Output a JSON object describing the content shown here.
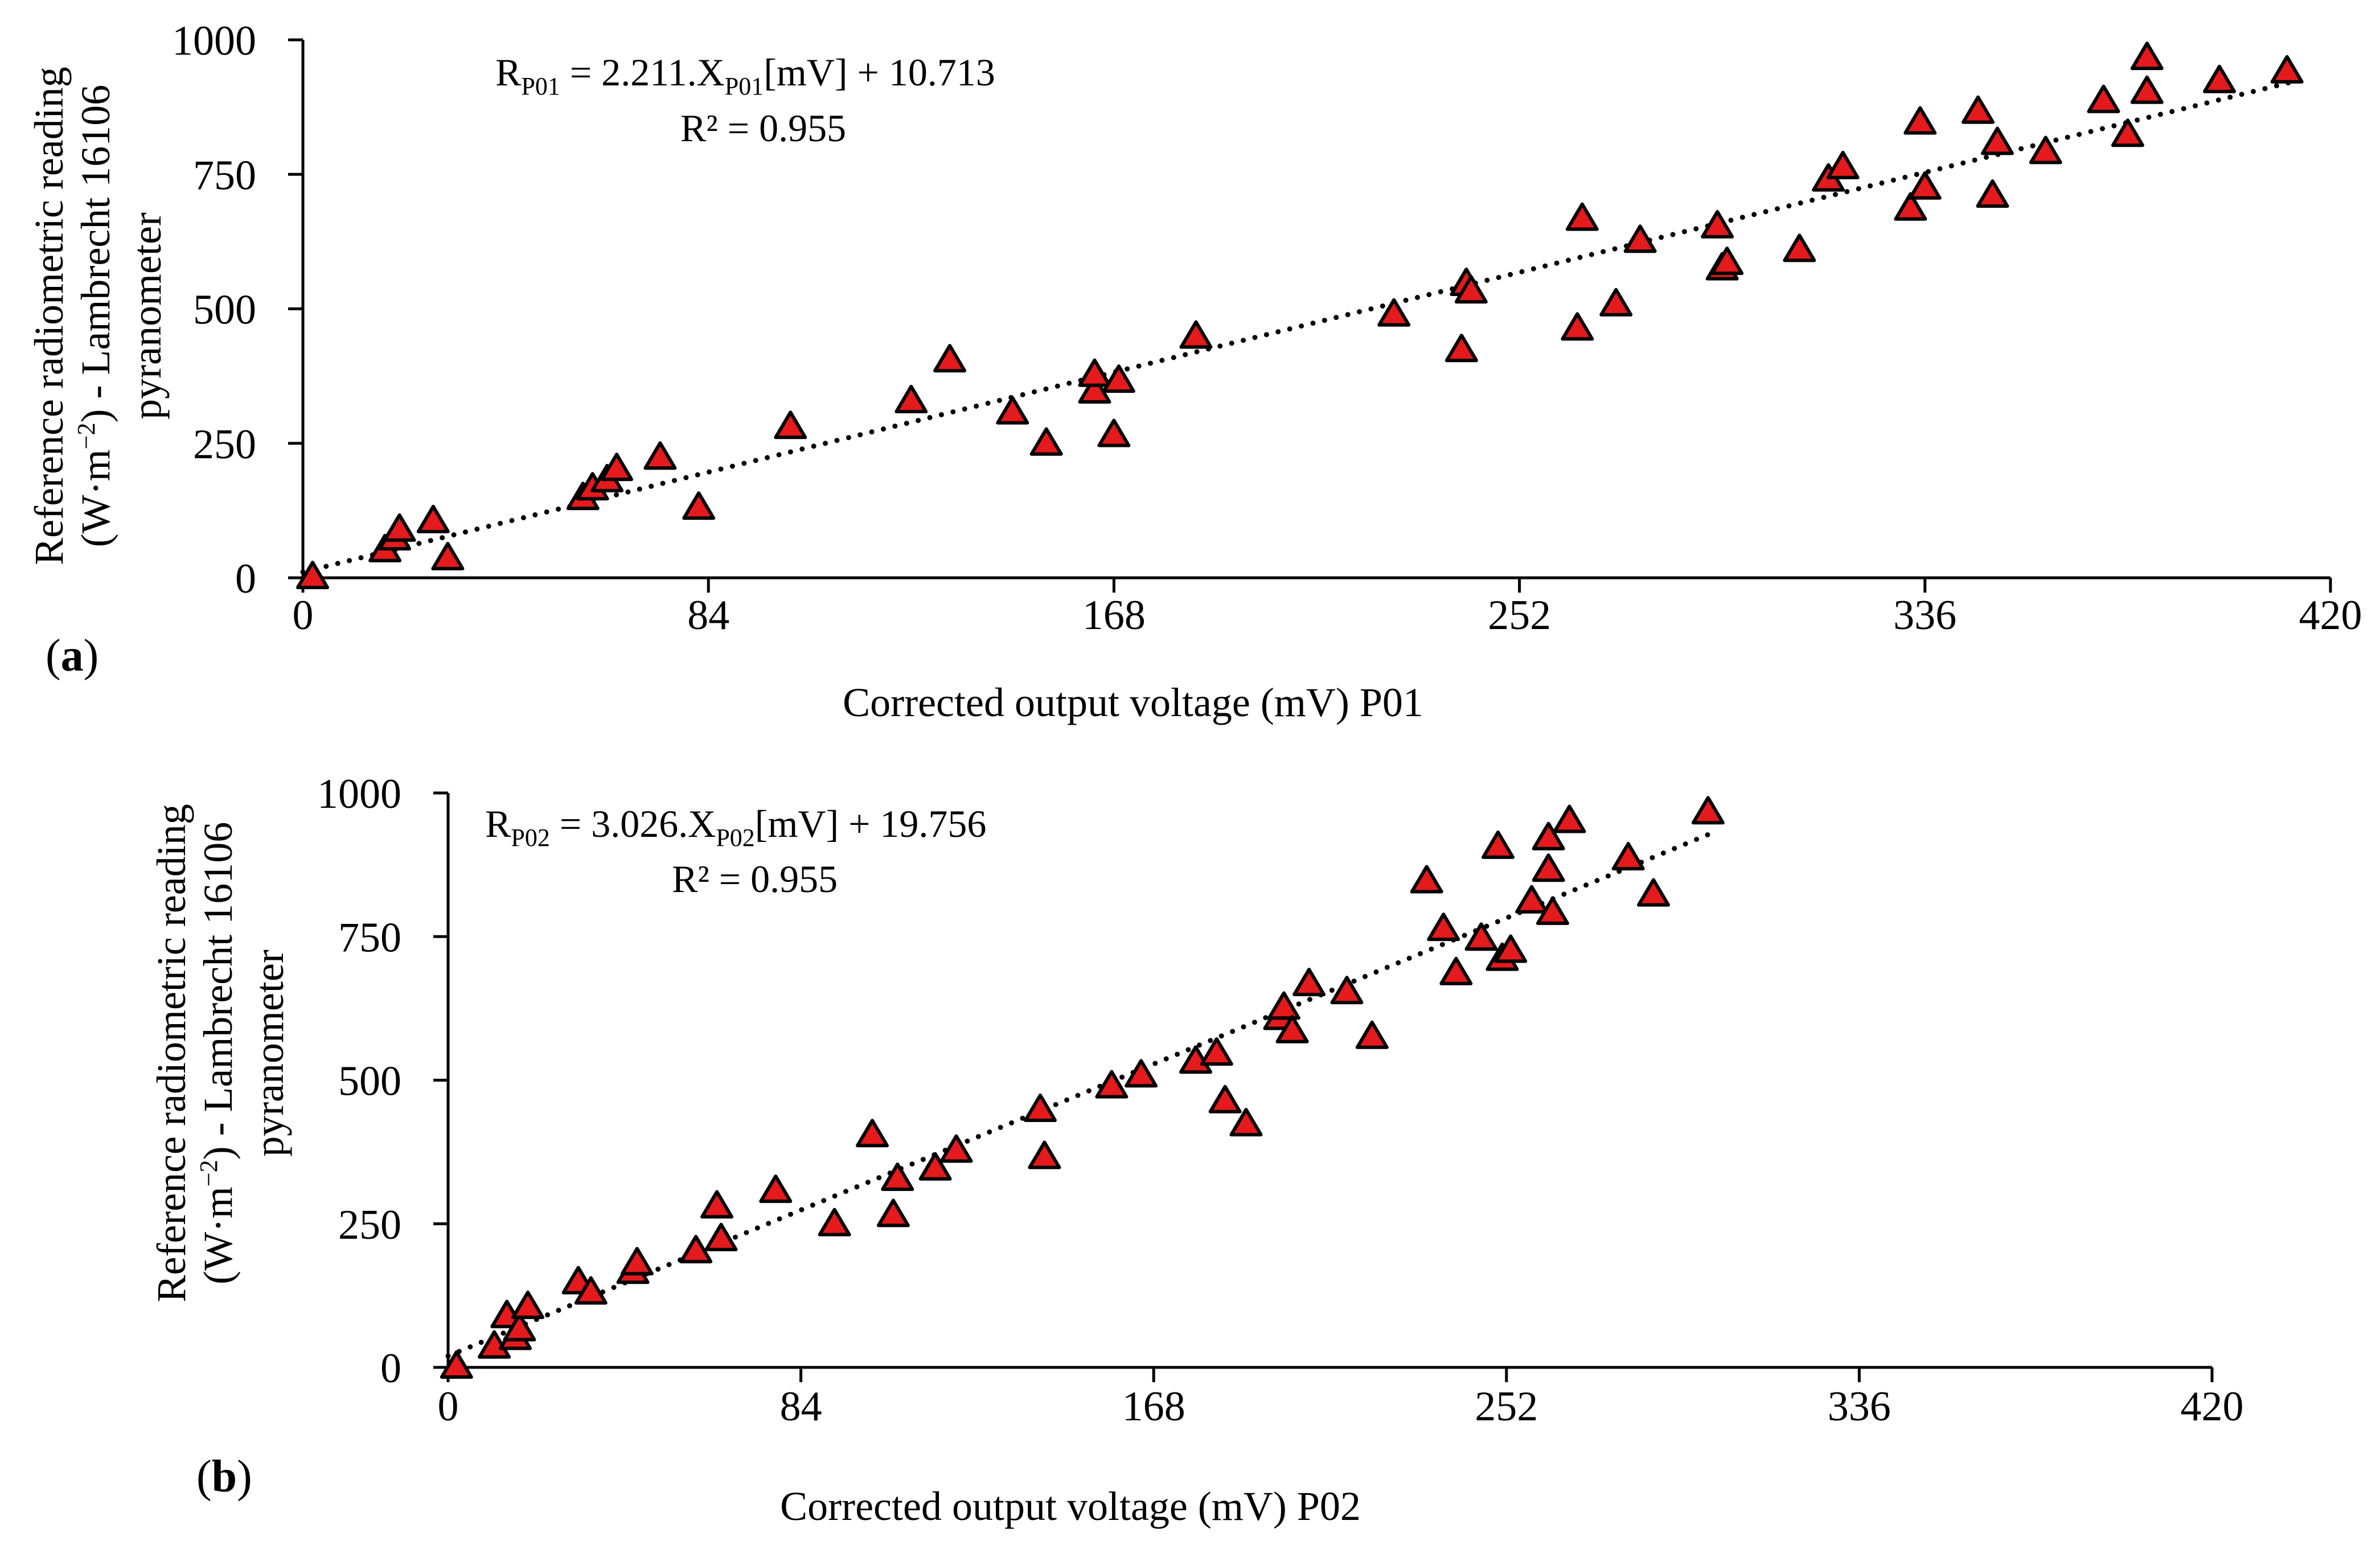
{
  "colors": {
    "marker_fill": "#e41a1c",
    "marker_stroke": "#000000",
    "trendline": "#000000",
    "axis": "#000000"
  },
  "chart_data": [
    {
      "type": "scatter",
      "panel_label": "a",
      "xlabel": "Corrected output voltage (mV) P01",
      "ylabel_line1": "Reference radiometric reading",
      "ylabel_line2_pre": "(W·m",
      "ylabel_line2_sup": "−2",
      "ylabel_line2_post": ") - Lambrecht 16106",
      "ylabel_line3": "pyranometer",
      "xlim": [
        0,
        420
      ],
      "ylim": [
        0,
        1000
      ],
      "xticks": [
        0,
        84,
        168,
        252,
        336,
        420
      ],
      "yticks": [
        0,
        250,
        500,
        750,
        1000
      ],
      "equation": {
        "R": "R",
        "sub1": "P01",
        "mid": " = 2.211.X",
        "sub2": "P01",
        "tail": "[mV] + 10.713",
        "r2": "R² = 0.955"
      },
      "trendline": {
        "slope": 2.211,
        "intercept": 10.713,
        "x_range": [
          0,
          412
        ]
      },
      "series": [
        {
          "name": "P01",
          "x": [
            2,
            17,
            19,
            20,
            27,
            30,
            58,
            60,
            63,
            65,
            74,
            82,
            101,
            126,
            134,
            147,
            154,
            164,
            164,
            168,
            169,
            185,
            226,
            240,
            241,
            242,
            264,
            265,
            272,
            277,
            293,
            294,
            295,
            310,
            316,
            319,
            333,
            335,
            336,
            347,
            350,
            351,
            361,
            373,
            378,
            382,
            382,
            397,
            411
          ],
          "y": [
            0,
            50,
            72,
            88,
            104,
            35,
            147,
            165,
            180,
            201,
            222,
            129,
            279,
            327,
            403,
            306,
            248,
            345,
            376,
            264,
            365,
            447,
            488,
            422,
            545,
            531,
            462,
            666,
            507,
            625,
            652,
            574,
            584,
            608,
            739,
            762,
            685,
            845,
            724,
            865,
            709,
            807,
            790,
            885,
            822,
            965,
            902,
            922,
            940
          ]
        }
      ]
    },
    {
      "type": "scatter",
      "panel_label": "b",
      "xlabel": "Corrected output voltage (mV) P02",
      "ylabel_line1": "Reference radiometric reading",
      "ylabel_line2_pre": "(W·m",
      "ylabel_line2_sup": "−2",
      "ylabel_line2_post": ") - Lambrecht 16106",
      "ylabel_line3": "pyranometer",
      "xlim": [
        0,
        420
      ],
      "ylim": [
        0,
        1000
      ],
      "xticks": [
        0,
        84,
        168,
        252,
        336,
        420
      ],
      "yticks": [
        0,
        250,
        500,
        750,
        1000
      ],
      "equation": {
        "R": "R",
        "sub1": "P02",
        "mid": " = 3.026.X",
        "sub2": "P02",
        "tail": "[mV] + 19.756",
        "r2": "R² = 0.955"
      },
      "trendline": {
        "slope": 3.026,
        "intercept": 19.756,
        "x_range": [
          0,
          300
        ]
      },
      "series": [
        {
          "name": "P02",
          "x": [
            2,
            11,
            14,
            16,
            17,
            19,
            31,
            34,
            44,
            45,
            59,
            64,
            65,
            78,
            92,
            101,
            106,
            107,
            116,
            121,
            141,
            142,
            158,
            165,
            178,
            183,
            185,
            190,
            198,
            199,
            201,
            205,
            214,
            220,
            233,
            237,
            240,
            246,
            250,
            251,
            253,
            258,
            262,
            262,
            263,
            267,
            281,
            287,
            300
          ],
          "y": [
            0,
            35,
            88,
            50,
            65,
            104,
            147,
            129,
            165,
            180,
            201,
            279,
            222,
            306,
            248,
            403,
            264,
            327,
            345,
            376,
            447,
            365,
            488,
            507,
            531,
            545,
            462,
            422,
            607,
            625,
            584,
            666,
            652,
            574,
            845,
            762,
            685,
            745,
            905,
            710,
            724,
            810,
            920,
            865,
            790,
            950,
            885,
            822,
            965
          ]
        }
      ]
    }
  ]
}
